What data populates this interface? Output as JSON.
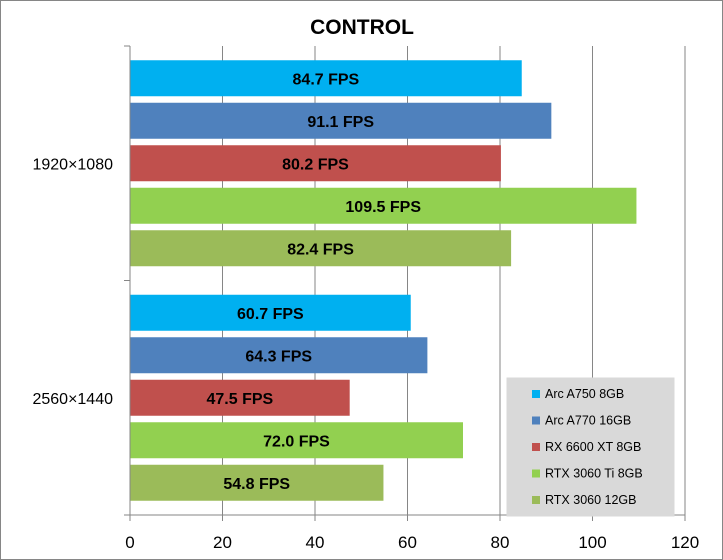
{
  "chart_data": {
    "type": "bar",
    "orientation": "horizontal",
    "title": "CONTROL",
    "categories": [
      "1920×1080",
      "2560×1440"
    ],
    "series": [
      {
        "name": "Arc A750 8GB",
        "color": "#00b0f0",
        "values": [
          84.7,
          60.7
        ],
        "labels": [
          "84.7 FPS",
          "60.7 FPS"
        ]
      },
      {
        "name": "Arc A770 16GB",
        "color": "#4f81bd",
        "values": [
          91.1,
          64.3
        ],
        "labels": [
          "91.1 FPS",
          "64.3 FPS"
        ]
      },
      {
        "name": "RX 6600 XT 8GB",
        "color": "#c0504d",
        "values": [
          80.2,
          47.5
        ],
        "labels": [
          "80.2 FPS",
          "47.5 FPS"
        ]
      },
      {
        "name": "RTX 3060 Ti 8GB",
        "color": "#92d050",
        "values": [
          109.5,
          72.0
        ],
        "labels": [
          "109.5 FPS",
          "72.0 FPS"
        ]
      },
      {
        "name": "RTX 3060 12GB",
        "color": "#9bbb59",
        "values": [
          82.4,
          54.8
        ],
        "labels": [
          "82.4 FPS",
          "54.8 FPS"
        ]
      }
    ],
    "xlim": [
      0,
      120
    ],
    "xticks": [
      0,
      20,
      40,
      60,
      80,
      100,
      120
    ],
    "xtick_labels": [
      "0",
      "20",
      "40",
      "60",
      "80",
      "100",
      "120"
    ],
    "grid": true,
    "legend": "bottom-right"
  }
}
